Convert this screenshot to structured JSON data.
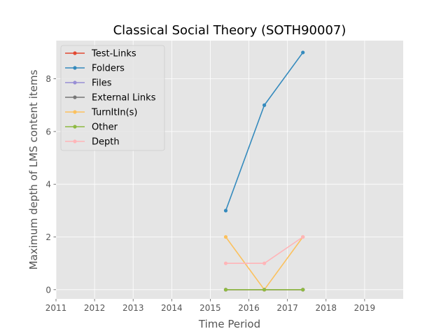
{
  "chart_data": {
    "type": "line",
    "title": "Classical Social Theory (SOTH90007)",
    "xlabel": "Time Period",
    "ylabel": "Maximum depth of LMS content items",
    "xlim": [
      2011,
      2020
    ],
    "ylim": [
      -0.35,
      9.45
    ],
    "x_ticks": [
      "2011",
      "2012",
      "2013",
      "2014",
      "2015",
      "2016",
      "2017",
      "2018",
      "2019"
    ],
    "y_ticks": [
      "0",
      "2",
      "4",
      "6",
      "8"
    ],
    "grid": true,
    "legend_position": "upper-left",
    "x": [
      2015.4,
      2016.4,
      2017.4
    ],
    "series": [
      {
        "name": "Test-Links",
        "color": "#E24A33",
        "values": [
          0,
          0,
          0
        ]
      },
      {
        "name": "Folders",
        "color": "#348ABD",
        "values": [
          3,
          7,
          9
        ]
      },
      {
        "name": "Files",
        "color": "#988ED5",
        "values": [
          0,
          0,
          0
        ]
      },
      {
        "name": "External Links",
        "color": "#777777",
        "values": [
          0,
          0,
          0
        ]
      },
      {
        "name": "TurnItIn(s)",
        "color": "#FBC15E",
        "values": [
          2,
          0,
          2
        ]
      },
      {
        "name": "Other",
        "color": "#8EBA42",
        "values": [
          0,
          0,
          0
        ]
      },
      {
        "name": "Depth",
        "color": "#FFB5B8",
        "values": [
          1,
          1,
          2
        ]
      }
    ]
  }
}
